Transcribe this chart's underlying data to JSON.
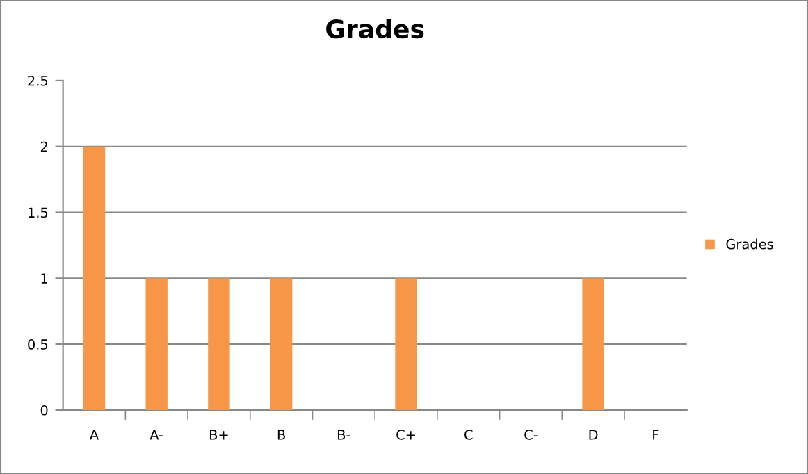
{
  "chart_data": {
    "type": "bar",
    "title": "Grades",
    "categories": [
      "A",
      "A-",
      "B+",
      "B",
      "B-",
      "C+",
      "C",
      "C-",
      "D",
      "F"
    ],
    "series": [
      {
        "name": "Grades",
        "color": "#f79646",
        "values": [
          2,
          1,
          1,
          1,
          0,
          1,
          0,
          0,
          1,
          0
        ]
      }
    ],
    "ylim": [
      0,
      2.5
    ],
    "yticks": [
      0,
      0.5,
      1,
      1.5,
      2,
      2.5
    ],
    "grid": "y",
    "legend": "right"
  }
}
